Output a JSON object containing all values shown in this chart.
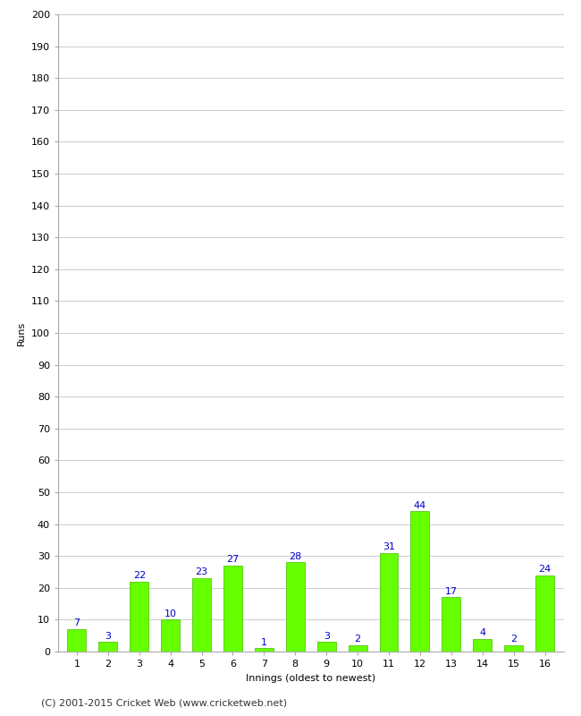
{
  "xlabel": "Innings (oldest to newest)",
  "ylabel": "Runs",
  "categories": [
    "1",
    "2",
    "3",
    "4",
    "5",
    "6",
    "7",
    "8",
    "9",
    "10",
    "11",
    "12",
    "13",
    "14",
    "15",
    "16"
  ],
  "values": [
    7,
    3,
    22,
    10,
    23,
    27,
    1,
    28,
    3,
    2,
    31,
    44,
    17,
    4,
    2,
    24
  ],
  "bar_color": "#66ff00",
  "bar_edge_color": "#44bb00",
  "label_color": "#0000cc",
  "ylim": [
    0,
    200
  ],
  "yticks": [
    0,
    10,
    20,
    30,
    40,
    50,
    60,
    70,
    80,
    90,
    100,
    110,
    120,
    130,
    140,
    150,
    160,
    170,
    180,
    190,
    200
  ],
  "background_color": "#ffffff",
  "grid_color": "#cccccc",
  "footer": "(C) 2001-2015 Cricket Web (www.cricketweb.net)",
  "axis_label_fontsize": 8,
  "tick_fontsize": 8,
  "value_label_fontsize": 8,
  "footer_fontsize": 8
}
